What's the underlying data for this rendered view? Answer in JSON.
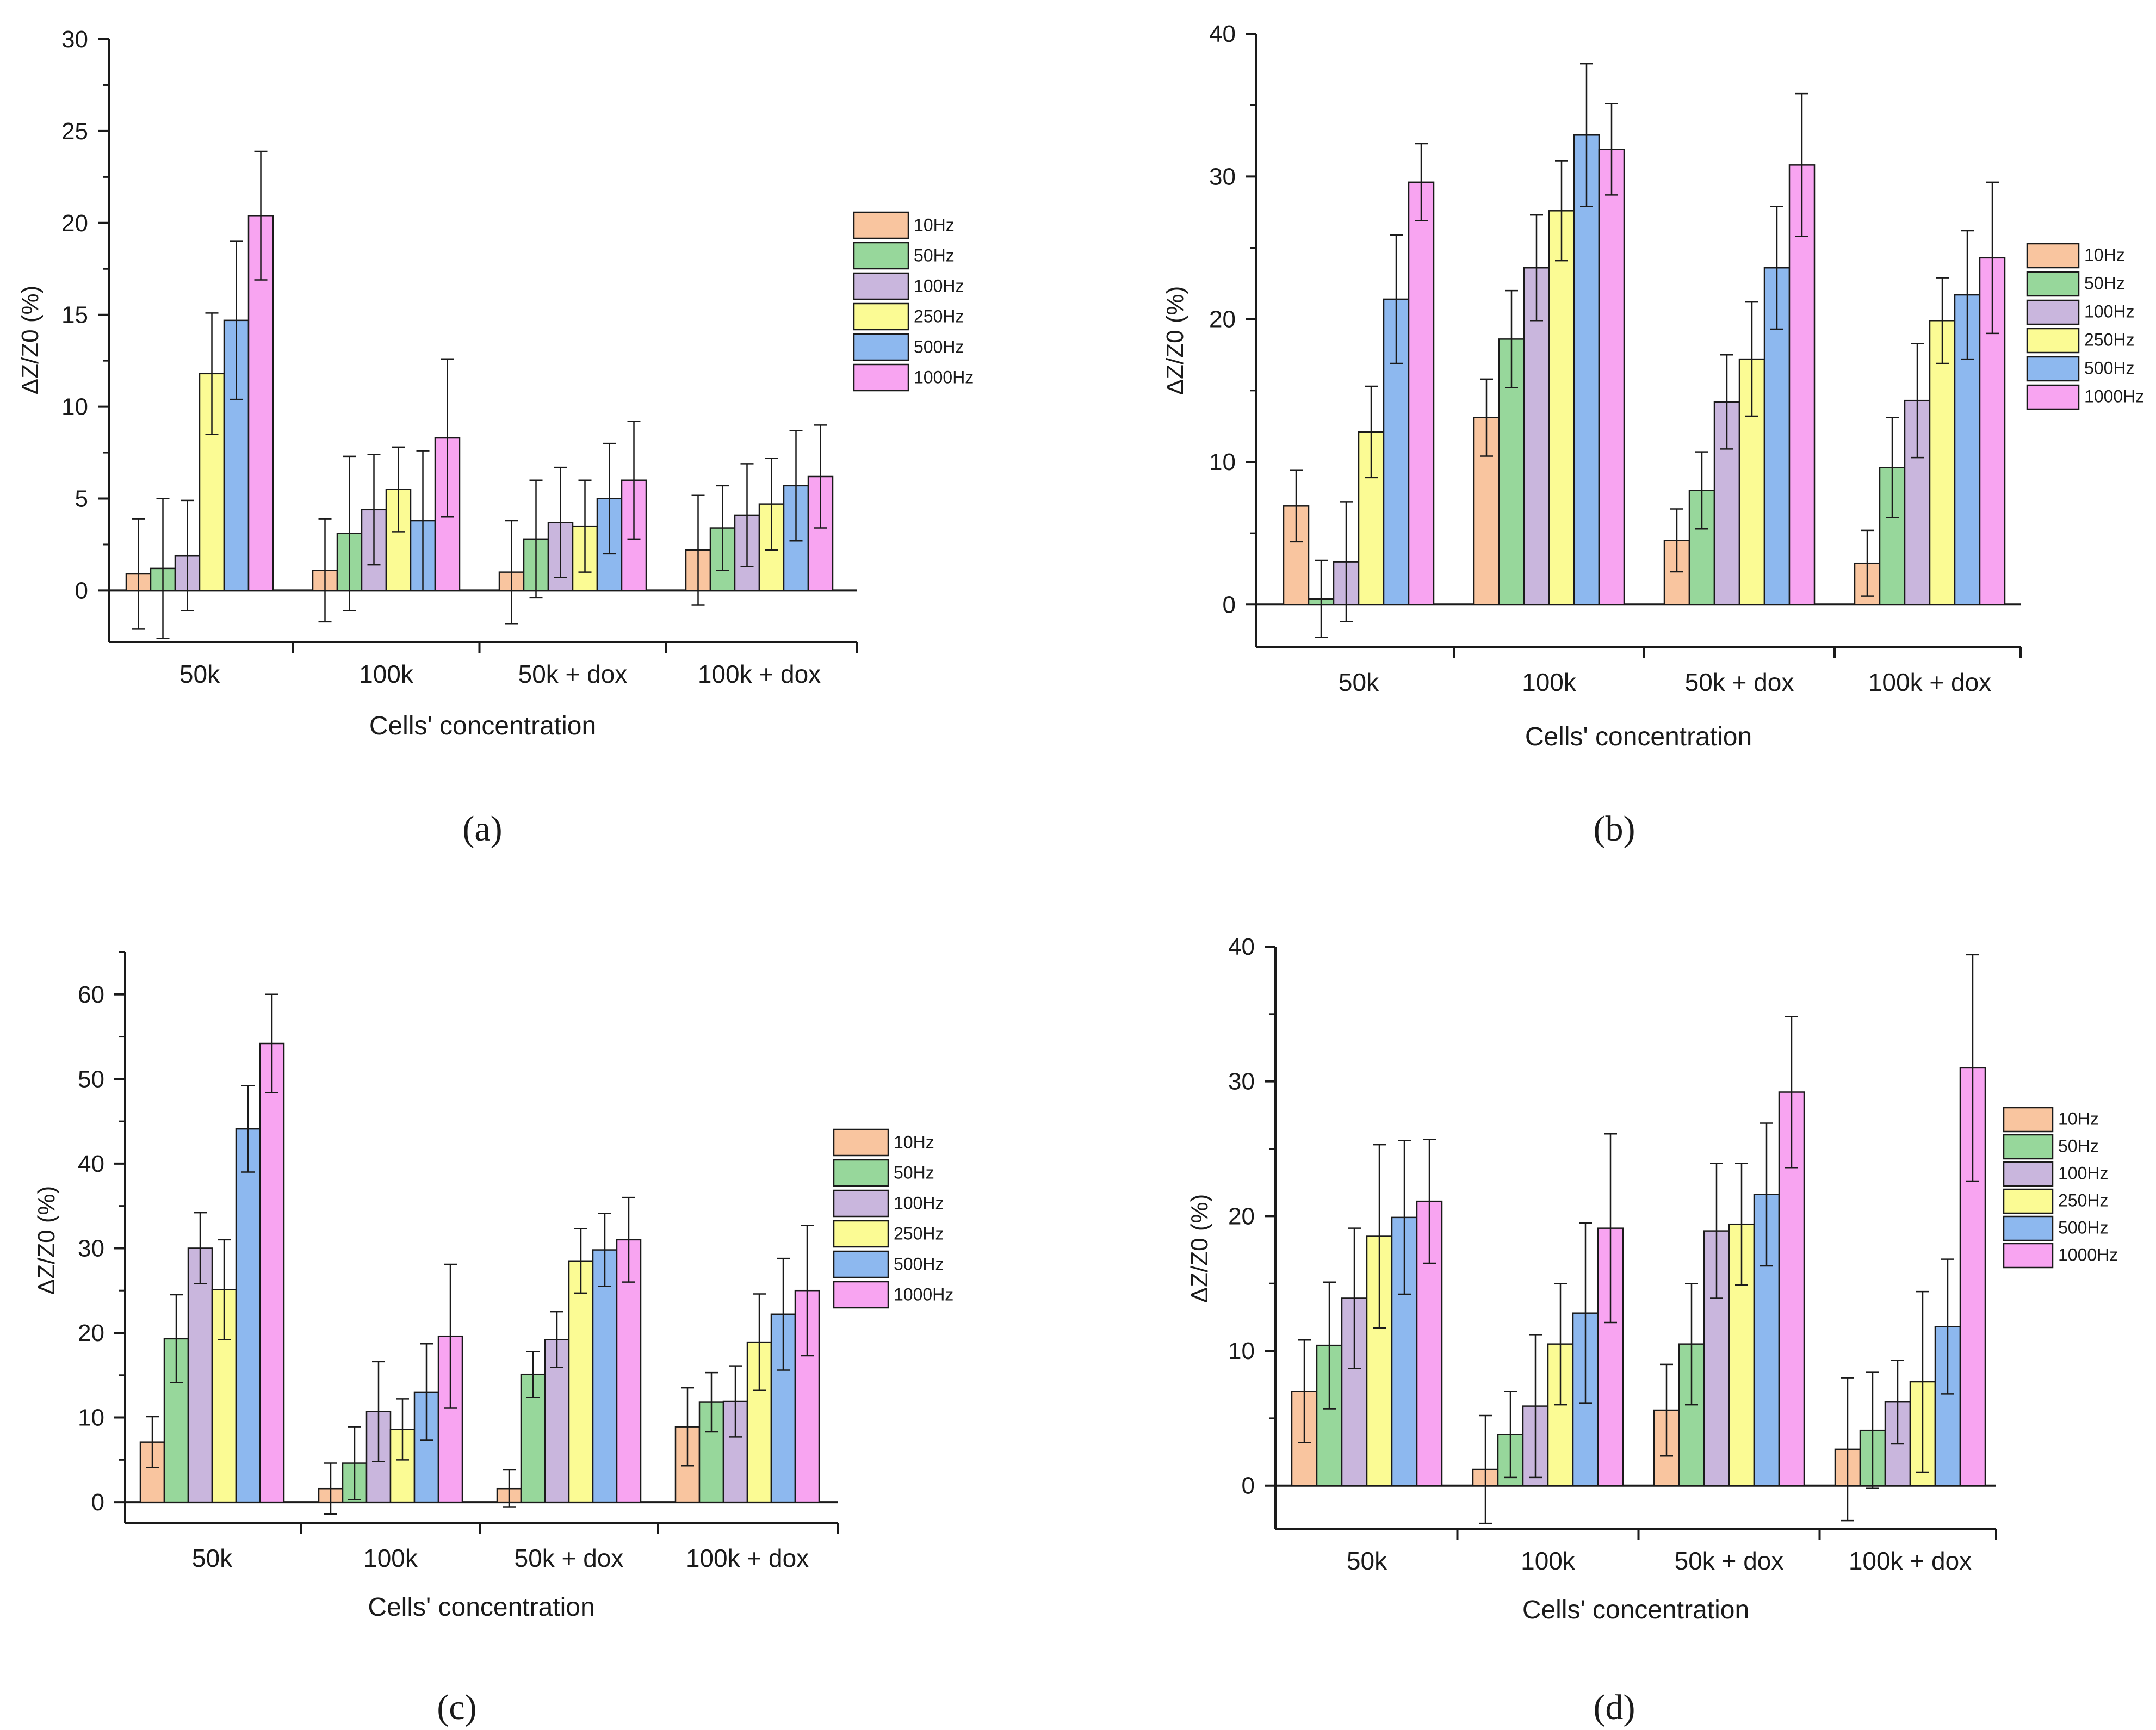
{
  "colors": {
    "10Hz": "#f9c59f",
    "50Hz": "#97d79b",
    "100Hz": "#c9b6dd",
    "250Hz": "#fbfb94",
    "500Hz": "#8db8ef",
    "1000Hz": "#f8a4f1",
    "axis": "#1a1a1a",
    "error_bar": "#1a1a1a"
  },
  "chart_data": [
    {
      "id": "a",
      "type": "bar",
      "panel_label": "(a)",
      "xlabel": "Cells' concentration",
      "ylabel": "ΔZ/Z0  (%)",
      "categories": [
        "50k",
        "100k",
        "50k + dox",
        "100k + dox"
      ],
      "ylim": [
        -2.8,
        30
      ],
      "yticks": [
        0,
        5,
        10,
        15,
        20,
        25,
        30
      ],
      "legend": [
        "10Hz",
        "50Hz",
        "100Hz",
        "250Hz",
        "500Hz",
        "1000Hz"
      ],
      "legend_position": "right",
      "series": [
        {
          "name": "10Hz",
          "values": [
            0.9,
            1.1,
            1.0,
            2.2
          ],
          "errors": [
            3.0,
            2.8,
            2.8,
            3.0
          ]
        },
        {
          "name": "50Hz",
          "values": [
            1.2,
            3.1,
            2.8,
            3.4
          ],
          "errors": [
            3.8,
            4.2,
            3.2,
            2.3
          ]
        },
        {
          "name": "100Hz",
          "values": [
            1.9,
            4.4,
            3.7,
            4.1
          ],
          "errors": [
            3.0,
            3.0,
            3.0,
            2.8
          ]
        },
        {
          "name": "250Hz",
          "values": [
            11.8,
            5.5,
            3.5,
            4.7
          ],
          "errors": [
            3.3,
            2.3,
            2.5,
            2.5
          ]
        },
        {
          "name": "500Hz",
          "values": [
            14.7,
            3.8,
            5.0,
            5.7
          ],
          "errors": [
            4.3,
            3.8,
            3.0,
            3.0
          ]
        },
        {
          "name": "1000Hz",
          "values": [
            20.4,
            8.3,
            6.0,
            6.2
          ],
          "errors": [
            3.5,
            4.3,
            3.2,
            2.8
          ]
        }
      ]
    },
    {
      "id": "b",
      "type": "bar",
      "panel_label": "(b)",
      "xlabel": "Cells' concentration",
      "ylabel": "ΔZ/Z0  (%)",
      "categories": [
        "50k",
        "100k",
        "50k + dox",
        "100k + dox"
      ],
      "ylim": [
        -3,
        40
      ],
      "yticks": [
        0,
        10,
        20,
        30,
        40
      ],
      "legend": [
        "10Hz",
        "50Hz",
        "100Hz",
        "250Hz",
        "500Hz",
        "1000Hz"
      ],
      "legend_position": "right",
      "series": [
        {
          "name": "10Hz",
          "values": [
            6.9,
            13.1,
            4.5,
            2.9
          ],
          "errors": [
            2.5,
            2.7,
            2.2,
            2.3
          ]
        },
        {
          "name": "50Hz",
          "values": [
            0.4,
            18.6,
            8.0,
            9.6
          ],
          "errors": [
            2.7,
            3.4,
            2.7,
            3.5
          ]
        },
        {
          "name": "100Hz",
          "values": [
            3.0,
            23.6,
            14.2,
            14.3
          ],
          "errors": [
            4.2,
            3.7,
            3.3,
            4.0
          ]
        },
        {
          "name": "250Hz",
          "values": [
            12.1,
            27.6,
            17.2,
            19.9
          ],
          "errors": [
            3.2,
            3.5,
            4.0,
            3.0
          ]
        },
        {
          "name": "500Hz",
          "values": [
            21.4,
            32.9,
            23.6,
            21.7
          ],
          "errors": [
            4.5,
            5.0,
            4.3,
            4.5
          ]
        },
        {
          "name": "1000Hz",
          "values": [
            29.6,
            31.9,
            30.8,
            24.3
          ],
          "errors": [
            2.7,
            3.2,
            5.0,
            5.3
          ]
        }
      ]
    },
    {
      "id": "c",
      "type": "bar",
      "panel_label": "(c)",
      "xlabel": "Cells' concentration",
      "ylabel": "ΔZ/Z0  (%)",
      "categories": [
        "50k",
        "100k",
        "50k + dox",
        "100k + dox"
      ],
      "ylim": [
        -2.5,
        65
      ],
      "yticks": [
        0,
        10,
        20,
        30,
        40,
        50,
        60
      ],
      "legend": [
        "10Hz",
        "50Hz",
        "100Hz",
        "250Hz",
        "500Hz",
        "1000Hz"
      ],
      "legend_position": "right",
      "series": [
        {
          "name": "10Hz",
          "values": [
            7.1,
            1.6,
            1.6,
            8.9
          ],
          "errors": [
            3.0,
            3.0,
            2.2,
            4.6
          ]
        },
        {
          "name": "50Hz",
          "values": [
            19.3,
            4.6,
            15.1,
            11.8
          ],
          "errors": [
            5.2,
            4.3,
            2.7,
            3.5
          ]
        },
        {
          "name": "100Hz",
          "values": [
            30.0,
            10.7,
            19.2,
            11.9
          ],
          "errors": [
            4.2,
            5.9,
            3.3,
            4.2
          ]
        },
        {
          "name": "250Hz",
          "values": [
            25.1,
            8.6,
            28.5,
            18.9
          ],
          "errors": [
            5.9,
            3.6,
            3.8,
            5.7
          ]
        },
        {
          "name": "500Hz",
          "values": [
            44.1,
            13.0,
            29.8,
            22.2
          ],
          "errors": [
            5.1,
            5.7,
            4.3,
            6.6
          ]
        },
        {
          "name": "1000Hz",
          "values": [
            54.2,
            19.6,
            31.0,
            25.0
          ],
          "errors": [
            5.8,
            8.5,
            5.0,
            7.7
          ]
        }
      ]
    },
    {
      "id": "d",
      "type": "bar",
      "panel_label": "(d)",
      "xlabel": "Cells' concentration",
      "ylabel": "ΔZ/Z0  (%)",
      "categories": [
        "50k",
        "100k",
        "50k + dox",
        "100k + dox"
      ],
      "ylim": [
        -3.2,
        40
      ],
      "yticks": [
        0,
        10,
        20,
        30,
        40
      ],
      "legend": [
        "10Hz",
        "50Hz",
        "100Hz",
        "250Hz",
        "500Hz",
        "1000Hz"
      ],
      "legend_position": "right",
      "series": [
        {
          "name": "10Hz",
          "values": [
            7.0,
            1.2,
            5.6,
            2.7
          ],
          "errors": [
            3.8,
            4.0,
            3.4,
            5.3
          ]
        },
        {
          "name": "50Hz",
          "values": [
            10.4,
            3.8,
            10.5,
            4.1
          ],
          "errors": [
            4.7,
            3.2,
            4.5,
            4.3
          ]
        },
        {
          "name": "100Hz",
          "values": [
            13.9,
            5.9,
            18.9,
            6.2
          ],
          "errors": [
            5.2,
            5.3,
            5.0,
            3.1
          ]
        },
        {
          "name": "250Hz",
          "values": [
            18.5,
            10.5,
            19.4,
            7.7
          ],
          "errors": [
            6.8,
            4.5,
            4.5,
            6.7
          ]
        },
        {
          "name": "500Hz",
          "values": [
            19.9,
            12.8,
            21.6,
            11.8
          ],
          "errors": [
            5.7,
            6.7,
            5.3,
            5.0
          ]
        },
        {
          "name": "1000Hz",
          "values": [
            21.1,
            19.1,
            29.2,
            31.0
          ],
          "errors": [
            4.6,
            7.0,
            5.6,
            8.4
          ]
        }
      ]
    }
  ]
}
